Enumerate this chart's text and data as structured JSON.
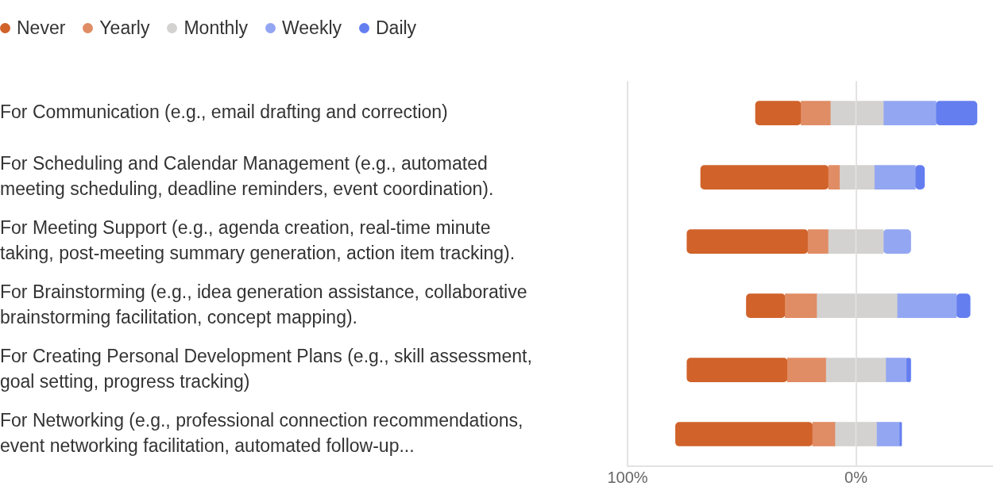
{
  "chart_data": {
    "type": "bar",
    "orientation": "horizontal",
    "stacked": true,
    "categories": [
      "For Communication (e.g., email drafting and correction)",
      "For Scheduling and Calendar Management (e.g., automated meeting scheduling, deadline reminders, event coordination).",
      "For Meeting Support (e.g., agenda creation, real-time minute taking, post-meeting summary generation, action item tracking).",
      "For Brainstorming (e.g., idea generation assistance, collaborative brainstorming facilitation, concept mapping).",
      "For Creating Personal Development Plans (e.g., skill assessment, goal setting, progress tracking)",
      "For Networking (e.g., professional connection recommendations, event networking facilitation, automated follow-up..."
    ],
    "series": [
      {
        "name": "Monthly",
        "color": "#d3d2d0",
        "values": [
          -11,
          -7,
          -12,
          -17,
          -13,
          -9
        ]
      },
      {
        "color": "#d3d2d0",
        "values": [
          12,
          8,
          12,
          18,
          13,
          9
        ]
      },
      {
        "name": "Yearly",
        "color": "#e08c64",
        "values": [
          -13,
          -5,
          -9,
          -14,
          -17,
          -10
        ]
      },
      {
        "name": "Weekly",
        "color": "#93a6f2",
        "values": [
          23,
          18,
          12,
          26,
          9,
          10
        ]
      },
      {
        "name": "Never",
        "color": "#d0622a",
        "values": [
          -20,
          -56,
          -53,
          -17,
          -44,
          -60
        ]
      },
      {
        "name": "Daily",
        "color": "#647ef0",
        "values": [
          18,
          4,
          null,
          6,
          2,
          1
        ]
      }
    ],
    "xlim": [
      -100,
      60
    ],
    "xticks": [
      {
        "value": -100,
        "label": "100%"
      },
      {
        "value": 0,
        "label": "0%"
      }
    ],
    "grid": "x",
    "legend": "top left"
  }
}
